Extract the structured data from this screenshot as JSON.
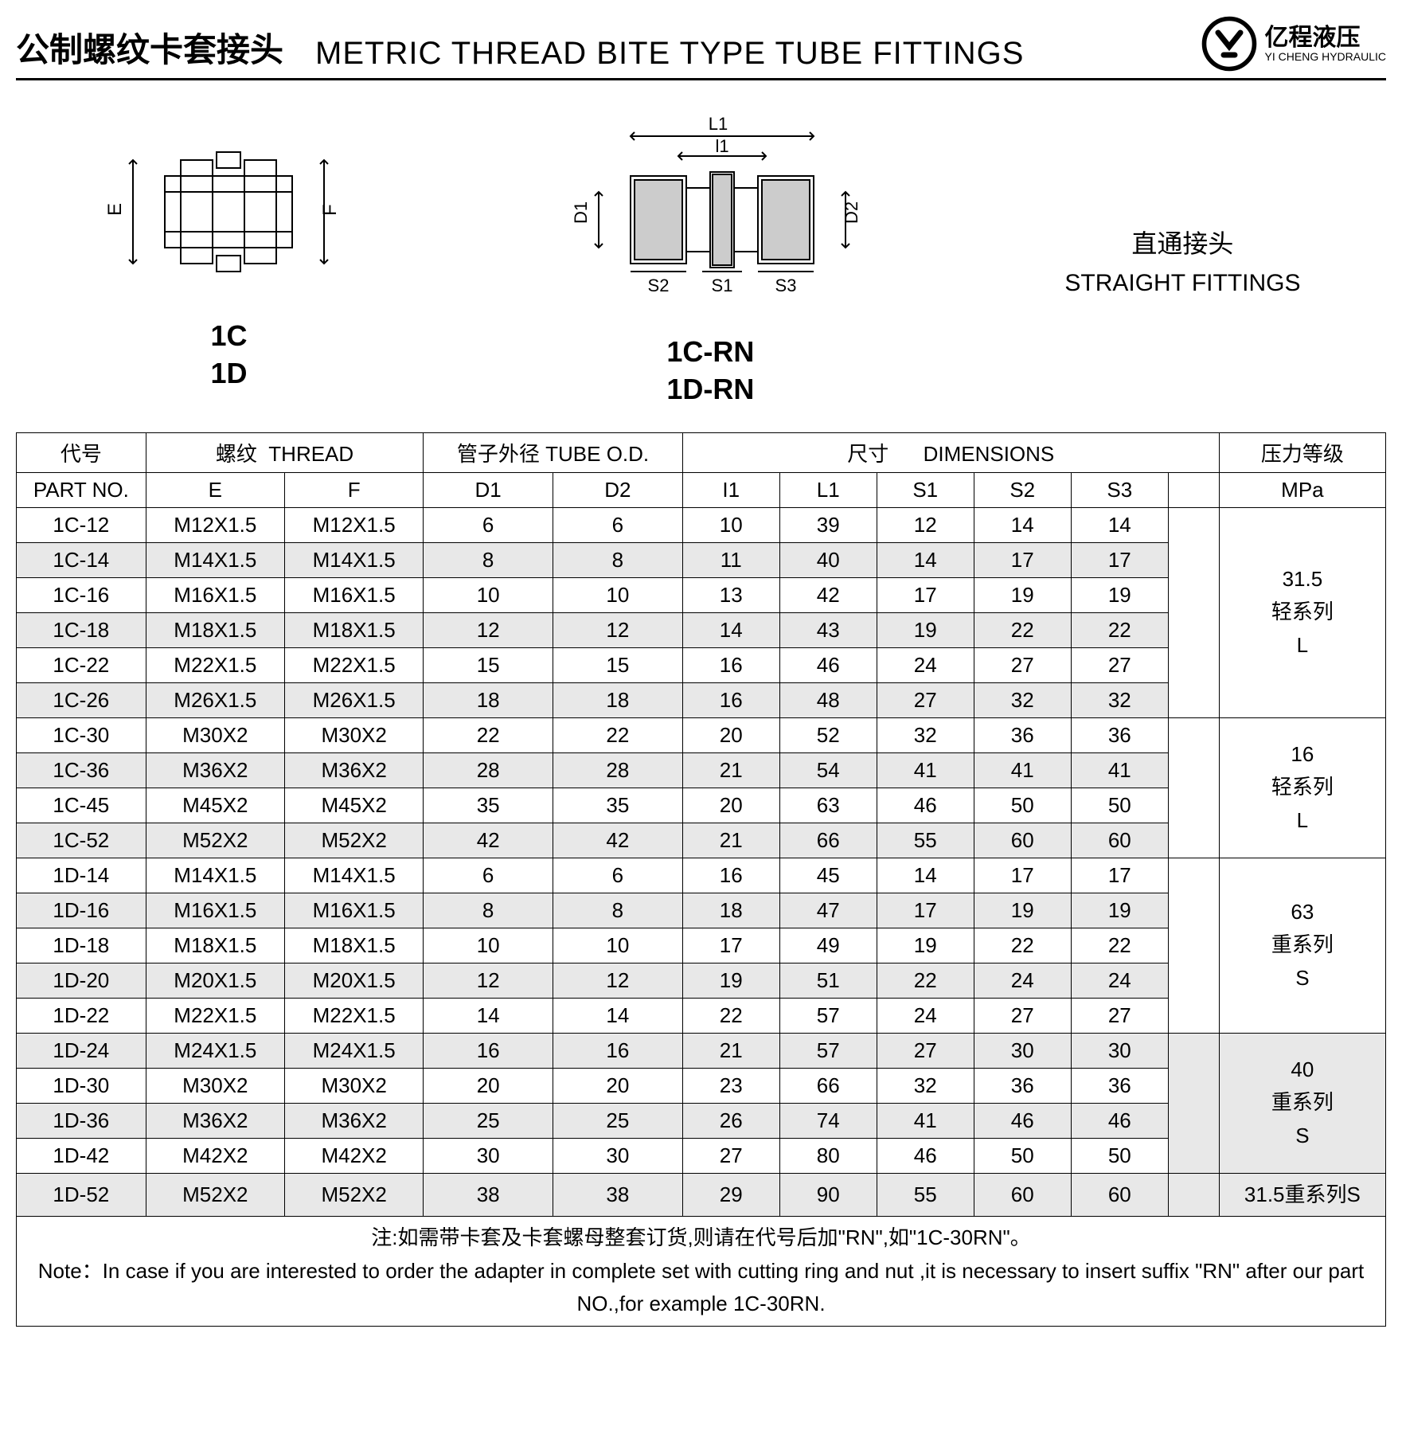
{
  "header": {
    "title_cn": "公制螺纹卡套接头",
    "title_en": "METRIC THREAD BITE TYPE TUBE FITTINGS",
    "logo_cn": "亿程液压",
    "logo_en": "YI CHENG HYDRAULIC"
  },
  "diagrams": {
    "left_labels": [
      "1C",
      "1D"
    ],
    "mid_labels": [
      "1C-RN",
      "1D-RN"
    ],
    "left_dims": {
      "E": "E",
      "F": "F"
    },
    "mid_dims": {
      "L1": "L1",
      "l1": "l1",
      "D1": "D1",
      "D2": "D2",
      "S1": "S1",
      "S2": "S2",
      "S3": "S3"
    },
    "right_cn": "直通接头",
    "right_en": "STRAIGHT FITTINGS"
  },
  "table": {
    "headers": {
      "part_cn": "代号",
      "part_en": "PART  NO.",
      "thread_cn": "螺纹",
      "thread_en": "THREAD",
      "tube_cn": "管子外径",
      "tube_en": "TUBE O.D.",
      "dim_cn": "尺寸",
      "dim_en": "DIMENSIONS",
      "press_cn": "压力等级",
      "press_en": "MPa",
      "E": "E",
      "F": "F",
      "D1": "D1",
      "D2": "D2",
      "I1": "I1",
      "L1": "L1",
      "S1": "S1",
      "S2": "S2",
      "S3": "S3"
    },
    "groups": [
      {
        "pressure_lines": [
          "31.5",
          "轻系列",
          "L"
        ],
        "rows": [
          {
            "alt": false,
            "c": [
              "1C-12",
              "M12X1.5",
              "M12X1.5",
              "6",
              "6",
              "10",
              "39",
              "12",
              "14",
              "14"
            ]
          },
          {
            "alt": true,
            "c": [
              "1C-14",
              "M14X1.5",
              "M14X1.5",
              "8",
              "8",
              "11",
              "40",
              "14",
              "17",
              "17"
            ]
          },
          {
            "alt": false,
            "c": [
              "1C-16",
              "M16X1.5",
              "M16X1.5",
              "10",
              "10",
              "13",
              "42",
              "17",
              "19",
              "19"
            ]
          },
          {
            "alt": true,
            "c": [
              "1C-18",
              "M18X1.5",
              "M18X1.5",
              "12",
              "12",
              "14",
              "43",
              "19",
              "22",
              "22"
            ]
          },
          {
            "alt": false,
            "c": [
              "1C-22",
              "M22X1.5",
              "M22X1.5",
              "15",
              "15",
              "16",
              "46",
              "24",
              "27",
              "27"
            ]
          },
          {
            "alt": true,
            "c": [
              "1C-26",
              "M26X1.5",
              "M26X1.5",
              "18",
              "18",
              "16",
              "48",
              "27",
              "32",
              "32"
            ]
          }
        ]
      },
      {
        "pressure_lines": [
          "16",
          "轻系列",
          "L"
        ],
        "rows": [
          {
            "alt": false,
            "c": [
              "1C-30",
              "M30X2",
              "M30X2",
              "22",
              "22",
              "20",
              "52",
              "32",
              "36",
              "36"
            ]
          },
          {
            "alt": true,
            "c": [
              "1C-36",
              "M36X2",
              "M36X2",
              "28",
              "28",
              "21",
              "54",
              "41",
              "41",
              "41"
            ]
          },
          {
            "alt": false,
            "c": [
              "1C-45",
              "M45X2",
              "M45X2",
              "35",
              "35",
              "20",
              "63",
              "46",
              "50",
              "50"
            ]
          },
          {
            "alt": true,
            "c": [
              "1C-52",
              "M52X2",
              "M52X2",
              "42",
              "42",
              "21",
              "66",
              "55",
              "60",
              "60"
            ]
          }
        ]
      },
      {
        "pressure_lines": [
          "63",
          "重系列",
          "S"
        ],
        "rows": [
          {
            "alt": false,
            "c": [
              "1D-14",
              "M14X1.5",
              "M14X1.5",
              "6",
              "6",
              "16",
              "45",
              "14",
              "17",
              "17"
            ]
          },
          {
            "alt": true,
            "c": [
              "1D-16",
              "M16X1.5",
              "M16X1.5",
              "8",
              "8",
              "18",
              "47",
              "17",
              "19",
              "19"
            ]
          },
          {
            "alt": false,
            "c": [
              "1D-18",
              "M18X1.5",
              "M18X1.5",
              "10",
              "10",
              "17",
              "49",
              "19",
              "22",
              "22"
            ]
          },
          {
            "alt": true,
            "c": [
              "1D-20",
              "M20X1.5",
              "M20X1.5",
              "12",
              "12",
              "19",
              "51",
              "22",
              "24",
              "24"
            ]
          },
          {
            "alt": false,
            "c": [
              "1D-22",
              "M22X1.5",
              "M22X1.5",
              "14",
              "14",
              "22",
              "57",
              "24",
              "27",
              "27"
            ]
          }
        ]
      },
      {
        "pressure_lines": [
          "40",
          "重系列",
          "S"
        ],
        "rows": [
          {
            "alt": true,
            "c": [
              "1D-24",
              "M24X1.5",
              "M24X1.5",
              "16",
              "16",
              "21",
              "57",
              "27",
              "30",
              "30"
            ]
          },
          {
            "alt": false,
            "c": [
              "1D-30",
              "M30X2",
              "M30X2",
              "20",
              "20",
              "23",
              "66",
              "32",
              "36",
              "36"
            ]
          },
          {
            "alt": true,
            "c": [
              "1D-36",
              "M36X2",
              "M36X2",
              "25",
              "25",
              "26",
              "74",
              "41",
              "46",
              "46"
            ]
          },
          {
            "alt": false,
            "c": [
              "1D-42",
              "M42X2",
              "M42X2",
              "30",
              "30",
              "27",
              "80",
              "46",
              "50",
              "50"
            ]
          }
        ]
      },
      {
        "pressure_lines": [
          "31.5重系列S"
        ],
        "rows": [
          {
            "alt": true,
            "c": [
              "1D-52",
              "M52X2",
              "M52X2",
              "38",
              "38",
              "29",
              "90",
              "55",
              "60",
              "60"
            ]
          }
        ]
      }
    ],
    "note_cn": "注:如需带卡套及卡套螺母整套订货,则请在代号后加\"RN\",如\"1C-30RN\"。",
    "note_en": "Note：In case if you are interested to order the adapter in complete set with cutting ring  and nut ,it is necessary to insert suffix \"RN\" after our part NO.,for example 1C-30RN."
  }
}
